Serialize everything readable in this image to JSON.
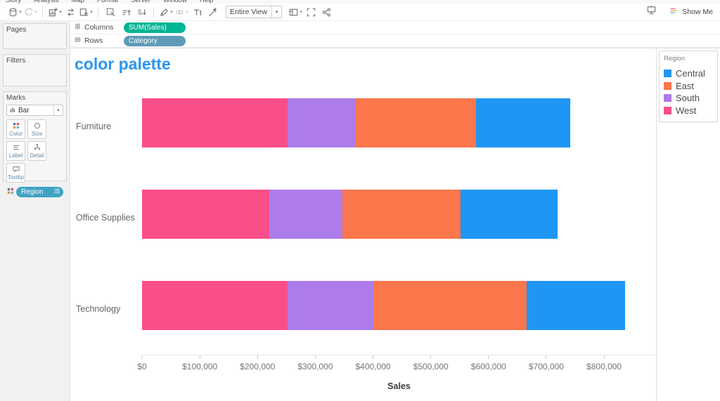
{
  "menu": {
    "items": [
      "Story",
      "Analysis",
      "Map",
      "Format",
      "Server",
      "Window",
      "Help"
    ]
  },
  "toolbar": {
    "fit_label": "Entire View",
    "show_me_label": "Show Me",
    "items": [
      {
        "name": "new-data-source",
        "caret": true
      },
      {
        "name": "pause-auto-updates",
        "caret": true,
        "disabled": true
      },
      {
        "divider": true
      },
      {
        "name": "new-worksheet",
        "caret": true
      },
      {
        "name": "swap-rows-columns"
      },
      {
        "name": "clear-sheet",
        "caret": true
      },
      {
        "divider": true
      },
      {
        "name": "select-marks"
      },
      {
        "name": "sort-ascending"
      },
      {
        "name": "sort-descending"
      },
      {
        "divider": true
      },
      {
        "name": "highlight",
        "caret": true
      },
      {
        "name": "group-members",
        "caret": true,
        "disabled": true
      },
      {
        "name": "show-mark-labels"
      },
      {
        "name": "format-wand"
      },
      {
        "dropdown": true
      },
      {
        "name": "show-hide-cards",
        "caret": true
      },
      {
        "name": "fit-axes"
      },
      {
        "name": "share"
      }
    ]
  },
  "shelves": {
    "columns": {
      "label": "Columns",
      "pills": [
        {
          "label": "SUM(Sales)",
          "type": "measure"
        }
      ]
    },
    "rows": {
      "label": "Rows",
      "pills": [
        {
          "label": "Category",
          "type": "dimension"
        }
      ]
    }
  },
  "sidebar": {
    "pages_label": "Pages",
    "filters_label": "Filters",
    "marks": {
      "label": "Marks",
      "mark_type": "Bar",
      "buttons": [
        {
          "name": "color",
          "label": "Color",
          "icon": "color-dots"
        },
        {
          "name": "size",
          "label": "Size",
          "icon": "size-circle"
        },
        {
          "name": "label",
          "label": "Label",
          "icon": "label-lines"
        },
        {
          "name": "detail",
          "label": "Detail",
          "icon": "detail-branch"
        },
        {
          "name": "tooltip",
          "label": "Tooltip",
          "icon": "tooltip-bubble"
        }
      ],
      "color_pill": "Region"
    }
  },
  "legend": {
    "title": "Region",
    "items": [
      {
        "label": "Central",
        "color": "#1f96f4"
      },
      {
        "label": "East",
        "color": "#fb764b"
      },
      {
        "label": "South",
        "color": "#ae7bea"
      },
      {
        "label": "West",
        "color": "#fa4e8a"
      }
    ]
  },
  "colors": {
    "title": "#2b96f3",
    "measure_pill": "#00b593",
    "dimension_pill": "#5d9bb8",
    "region_pill": "#3fa3c4"
  },
  "chart_data": {
    "type": "bar",
    "orientation": "horizontal",
    "stacked": true,
    "title": "color palette",
    "categories": [
      "Furniture",
      "Office Supplies",
      "Technology"
    ],
    "series": [
      {
        "name": "West",
        "color": "#fa4e8a",
        "values": [
          252613,
          220853,
          251992
        ]
      },
      {
        "name": "South",
        "color": "#ae7bea",
        "values": [
          117299,
          125651,
          148772
        ]
      },
      {
        "name": "East",
        "color": "#fb764b",
        "values": [
          208291,
          205516,
          264974
        ]
      },
      {
        "name": "Central",
        "color": "#1f96f4",
        "values": [
          163797,
          167026,
          170416
        ]
      }
    ],
    "xlabel": "Sales",
    "ylabel": "Category",
    "xlim": [
      0,
      890000
    ],
    "x_ticks": [
      {
        "value": 0,
        "label": "$0"
      },
      {
        "value": 100000,
        "label": "$100,000"
      },
      {
        "value": 200000,
        "label": "$200,000"
      },
      {
        "value": 300000,
        "label": "$300,000"
      },
      {
        "value": 400000,
        "label": "$400,000"
      },
      {
        "value": 500000,
        "label": "$500,000"
      },
      {
        "value": 600000,
        "label": "$600,000"
      },
      {
        "value": 700000,
        "label": "$700,000"
      },
      {
        "value": 800000,
        "label": "$800,000"
      }
    ],
    "grid": false,
    "legend_position": "right"
  }
}
